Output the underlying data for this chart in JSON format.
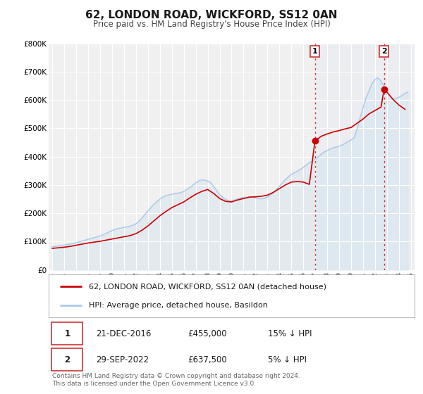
{
  "title": "62, LONDON ROAD, WICKFORD, SS12 0AN",
  "subtitle": "Price paid vs. HM Land Registry's House Price Index (HPI)",
  "title_fontsize": 11,
  "subtitle_fontsize": 8.5,
  "ylim": [
    0,
    800000
  ],
  "yticks": [
    0,
    100000,
    200000,
    300000,
    400000,
    500000,
    600000,
    700000,
    800000
  ],
  "ytick_labels": [
    "£0",
    "£100K",
    "£200K",
    "£300K",
    "£400K",
    "£500K",
    "£600K",
    "£700K",
    "£800K"
  ],
  "xlim_start": 1994.7,
  "xlim_end": 2025.3,
  "xticks": [
    1995,
    1996,
    1997,
    1998,
    1999,
    2000,
    2001,
    2002,
    2003,
    2004,
    2005,
    2006,
    2007,
    2008,
    2009,
    2010,
    2011,
    2012,
    2013,
    2014,
    2015,
    2016,
    2017,
    2018,
    2019,
    2020,
    2021,
    2022,
    2023,
    2024,
    2025
  ],
  "bg_color": "#ffffff",
  "plot_bg_color": "#f0f0f0",
  "grid_color": "#ffffff",
  "hpi_color": "#aac8e8",
  "hpi_fill_color": "#c8dff0",
  "price_color": "#cc0000",
  "sale1_date": 2016.97,
  "sale1_price": 455000,
  "sale2_date": 2022.75,
  "sale2_price": 637500,
  "vline_color": "#cc3333",
  "sale_marker_color": "#cc0000",
  "legend_label_price": "62, LONDON ROAD, WICKFORD, SS12 0AN (detached house)",
  "legend_label_hpi": "HPI: Average price, detached house, Basildon",
  "footer_text": "Contains HM Land Registry data © Crown copyright and database right 2024.\nThis data is licensed under the Open Government Licence v3.0.",
  "table_row1": [
    "1",
    "21-DEC-2016",
    "£455,000",
    "15% ↓ HPI"
  ],
  "table_row2": [
    "2",
    "29-SEP-2022",
    "£637,500",
    "5% ↓ HPI"
  ],
  "hpi_data_x": [
    1995.0,
    1995.25,
    1995.5,
    1995.75,
    1996.0,
    1996.25,
    1996.5,
    1996.75,
    1997.0,
    1997.25,
    1997.5,
    1997.75,
    1998.0,
    1998.25,
    1998.5,
    1998.75,
    1999.0,
    1999.25,
    1999.5,
    1999.75,
    2000.0,
    2000.25,
    2000.5,
    2000.75,
    2001.0,
    2001.25,
    2001.5,
    2001.75,
    2002.0,
    2002.25,
    2002.5,
    2002.75,
    2003.0,
    2003.25,
    2003.5,
    2003.75,
    2004.0,
    2004.25,
    2004.5,
    2004.75,
    2005.0,
    2005.25,
    2005.5,
    2005.75,
    2006.0,
    2006.25,
    2006.5,
    2006.75,
    2007.0,
    2007.25,
    2007.5,
    2007.75,
    2008.0,
    2008.25,
    2008.5,
    2008.75,
    2009.0,
    2009.25,
    2009.5,
    2009.75,
    2010.0,
    2010.25,
    2010.5,
    2010.75,
    2011.0,
    2011.25,
    2011.5,
    2011.75,
    2012.0,
    2012.25,
    2012.5,
    2012.75,
    2013.0,
    2013.25,
    2013.5,
    2013.75,
    2014.0,
    2014.25,
    2014.5,
    2014.75,
    2015.0,
    2015.25,
    2015.5,
    2015.75,
    2016.0,
    2016.25,
    2016.5,
    2016.75,
    2017.0,
    2017.25,
    2017.5,
    2017.75,
    2018.0,
    2018.25,
    2018.5,
    2018.75,
    2019.0,
    2019.25,
    2019.5,
    2019.75,
    2020.0,
    2020.25,
    2020.5,
    2020.75,
    2021.0,
    2021.25,
    2021.5,
    2021.75,
    2022.0,
    2022.25,
    2022.5,
    2022.75,
    2023.0,
    2023.25,
    2023.5,
    2023.75,
    2024.0,
    2024.25,
    2024.5,
    2024.75
  ],
  "hpi_data_y": [
    82000,
    83000,
    84500,
    86000,
    87500,
    89500,
    91500,
    93500,
    96000,
    99000,
    102000,
    105000,
    108000,
    111000,
    114000,
    117000,
    120000,
    124000,
    129000,
    134000,
    139000,
    143000,
    146000,
    148000,
    150000,
    152000,
    155000,
    158000,
    163000,
    172000,
    183000,
    196000,
    208000,
    220000,
    232000,
    241000,
    250000,
    257000,
    262000,
    265000,
    267000,
    269000,
    271000,
    273000,
    277000,
    284000,
    291000,
    299000,
    307000,
    314000,
    318000,
    317000,
    314000,
    308000,
    295000,
    280000,
    266000,
    256000,
    249000,
    244000,
    244000,
    247000,
    251000,
    254000,
    256000,
    257000,
    259000,
    257000,
    254000,
    252000,
    251000,
    254000,
    257000,
    264000,
    274000,
    284000,
    295000,
    307000,
    319000,
    329000,
    337000,
    343000,
    349000,
    355000,
    362000,
    371000,
    379000,
    384000,
    391000,
    399000,
    409000,
    417000,
    421000,
    427000,
    431000,
    434000,
    437000,
    441000,
    447000,
    454000,
    459000,
    467000,
    498000,
    538000,
    573000,
    608000,
    633000,
    658000,
    673000,
    678000,
    666000,
    648000,
    628000,
    613000,
    603000,
    606000,
    610000,
    616000,
    623000,
    628000
  ],
  "price_data_x": [
    1995.0,
    1995.5,
    1996.0,
    1996.5,
    1997.0,
    1997.5,
    1998.0,
    1998.5,
    1999.0,
    1999.5,
    2000.0,
    2000.5,
    2001.0,
    2001.5,
    2002.0,
    2002.5,
    2003.0,
    2003.5,
    2004.0,
    2004.5,
    2005.0,
    2005.5,
    2006.0,
    2006.5,
    2007.0,
    2007.5,
    2008.0,
    2008.5,
    2009.0,
    2009.5,
    2010.0,
    2010.5,
    2011.0,
    2011.5,
    2012.0,
    2012.5,
    2013.0,
    2013.5,
    2014.0,
    2014.5,
    2015.0,
    2015.5,
    2016.0,
    2016.5,
    2016.97,
    2017.5,
    2018.0,
    2018.5,
    2019.0,
    2019.5,
    2020.0,
    2020.5,
    2021.0,
    2021.5,
    2022.0,
    2022.5,
    2022.75,
    2023.0,
    2023.5,
    2024.0,
    2024.5
  ],
  "price_data_y": [
    76000,
    78000,
    80000,
    83000,
    87000,
    91000,
    95000,
    98000,
    101000,
    105000,
    109000,
    113000,
    117000,
    121000,
    128000,
    140000,
    155000,
    173000,
    191000,
    206000,
    220000,
    230000,
    240000,
    254000,
    267000,
    277000,
    284000,
    270000,
    252000,
    242000,
    240000,
    247000,
    252000,
    257000,
    258000,
    260000,
    264000,
    274000,
    287000,
    300000,
    310000,
    312000,
    310000,
    302000,
    455000,
    472000,
    480000,
    487000,
    492000,
    498000,
    503000,
    518000,
    533000,
    551000,
    563000,
    575000,
    637500,
    627000,
    602000,
    582000,
    567000
  ]
}
